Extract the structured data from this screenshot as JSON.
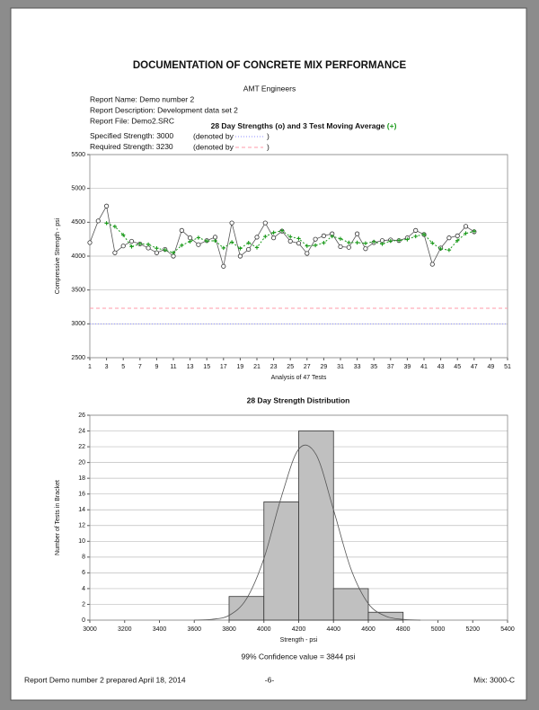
{
  "header": {
    "title": "DOCUMENTATION OF CONCRETE MIX PERFORMANCE",
    "company": "AMT Engineers",
    "report_name": "Report Name: Demo number 2",
    "report_description": "Report Description: Development data set 2",
    "report_file": "Report File: Demo2.SRC"
  },
  "chart_data": [
    {
      "type": "line",
      "title": "28 Day Strengths (o) and 3 Test Moving Average",
      "title_marker": "(+)",
      "title_marker_color": "#1a9a1a",
      "x_label": "Analysis of 47 Tests",
      "y_label": "Compressive Strength - psi",
      "x": [
        1,
        2,
        3,
        4,
        5,
        6,
        7,
        8,
        9,
        10,
        11,
        12,
        13,
        14,
        15,
        16,
        17,
        18,
        19,
        20,
        21,
        22,
        23,
        24,
        25,
        26,
        27,
        28,
        29,
        30,
        31,
        32,
        33,
        34,
        35,
        36,
        37,
        38,
        39,
        40,
        41,
        42,
        43,
        44,
        45,
        46,
        47
      ],
      "series": [
        {
          "color": "#555555",
          "marker": "circle",
          "values": [
            4200,
            4520,
            4740,
            4050,
            4150,
            4220,
            4180,
            4120,
            4050,
            4100,
            4000,
            4380,
            4270,
            4170,
            4230,
            4280,
            3850,
            4490,
            4000,
            4100,
            4280,
            4490,
            4270,
            4370,
            4220,
            4190,
            4040,
            4250,
            4300,
            4330,
            4140,
            4130,
            4330,
            4110,
            4200,
            4230,
            4240,
            4230,
            4270,
            4380,
            4320,
            3880,
            4120,
            4270,
            4300,
            4440,
            4360
          ]
        },
        {
          "color": "#1a9a1a",
          "marker": "plus",
          "values": [
            null,
            null,
            4487,
            4437,
            4313,
            4140,
            4183,
            4173,
            4117,
            4090,
            4050,
            4160,
            4217,
            4273,
            4223,
            4227,
            4120,
            4207,
            4113,
            4197,
            4127,
            4290,
            4347,
            4377,
            4287,
            4260,
            4150,
            4160,
            4197,
            4293,
            4257,
            4200,
            4200,
            4190,
            4213,
            4180,
            4223,
            4233,
            4247,
            4293,
            4323,
            4193,
            4107,
            4090,
            4230,
            4337,
            4367
          ]
        }
      ],
      "reference_lines": [
        {
          "label": "Specified Strength:",
          "value": 3000,
          "note": "(denoted by",
          "close": ")",
          "color": "#8f8fff",
          "dash": "1,2"
        },
        {
          "label": "Required Strength:",
          "value": 3230,
          "note": "(denoted by",
          "close": ")",
          "color": "#ff9aaa",
          "dash": "4,3"
        }
      ],
      "xlim": [
        1,
        51
      ],
      "xticks": [
        1,
        3,
        5,
        7,
        9,
        11,
        13,
        15,
        17,
        19,
        21,
        23,
        25,
        27,
        29,
        31,
        33,
        35,
        37,
        39,
        41,
        43,
        45,
        47,
        49,
        51
      ],
      "ylim": [
        2500,
        5500
      ],
      "yticks": [
        2500,
        3000,
        3500,
        4000,
        4500,
        5000,
        5500
      ],
      "grid": true
    },
    {
      "type": "histogram",
      "title": "28 Day Strength Distribution",
      "x_label": "Strength - psi",
      "y_label": "Number of Tests in Bracket",
      "bins": [
        3000,
        3200,
        3400,
        3600,
        3800,
        4000,
        4200,
        4400,
        4600,
        4800,
        5000,
        5200,
        5400
      ],
      "values": [
        0,
        0,
        0,
        0,
        3,
        15,
        24,
        4,
        1,
        0,
        0,
        0
      ],
      "color": "#c0c0c0",
      "curve": {
        "color": "#555555",
        "x": [
          3600,
          3700,
          3800,
          3900,
          4000,
          4100,
          4200,
          4300,
          4400,
          4500,
          4600,
          4700,
          4800,
          4900
        ],
        "y": [
          0.01,
          0.1,
          0.6,
          2.7,
          7.8,
          15.6,
          21.7,
          21.0,
          14.0,
          6.5,
          2.1,
          0.5,
          0.1,
          0
        ]
      },
      "xlim": [
        3000,
        5400
      ],
      "xticks": [
        3000,
        3200,
        3400,
        3600,
        3800,
        4000,
        4200,
        4400,
        4600,
        4800,
        5000,
        5200,
        5400
      ],
      "ylim": [
        0,
        26
      ],
      "yticks": [
        0,
        2,
        4,
        6,
        8,
        10,
        12,
        14,
        16,
        18,
        20,
        22,
        24,
        26
      ],
      "grid": true,
      "note": "99% Confidence value = 3844 psi"
    }
  ],
  "footer": {
    "left": "Report Demo number 2 prepared April 18, 2014",
    "center": "-6-",
    "right": "Mix: 3000-C"
  }
}
